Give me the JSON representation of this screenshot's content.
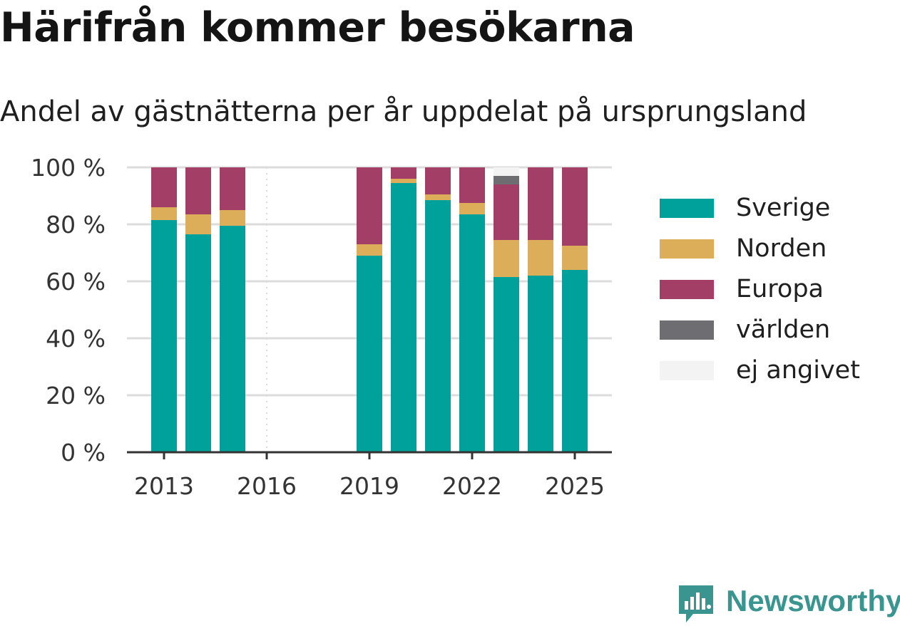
{
  "title": "Härifrån kommer besökarna",
  "subtitle": "Andel av gästnätterna per år uppdelat på ursprungsland",
  "brand": {
    "name": "Newsworthy",
    "icon": "newsworthy-logo-icon"
  },
  "colors": {
    "Sverige": "#00a19a",
    "Norden": "#dcae5a",
    "Europa": "#a33f67",
    "världen": "#6d6d72",
    "ej angivet": "#f3f3f3",
    "grid": "#dcdcdc",
    "axis": "#333333"
  },
  "legend": [
    "Sverige",
    "Norden",
    "Europa",
    "världen",
    "ej angivet"
  ],
  "chart_data": {
    "type": "bar",
    "stacked": true,
    "title": "Härifrån kommer besökarna",
    "subtitle": "Andel av gästnätterna per år uppdelat på ursprungsland",
    "categories": [
      2013,
      2014,
      2015,
      2016,
      2017,
      2018,
      2019,
      2020,
      2021,
      2022,
      2023,
      2024,
      2025
    ],
    "x_tick_labels": [
      "2013",
      "2016",
      "2019",
      "2022",
      "2025"
    ],
    "y_tick_labels": [
      "0 %",
      "20 %",
      "40 %",
      "60 %",
      "80 %",
      "100 %"
    ],
    "ylim": [
      0,
      100
    ],
    "grid": true,
    "legend_position": "right",
    "series": [
      {
        "name": "Sverige",
        "values": [
          81.5,
          76.5,
          79.5,
          null,
          null,
          null,
          69,
          94.5,
          88.5,
          83.5,
          61.5,
          62,
          64
        ]
      },
      {
        "name": "Norden",
        "values": [
          4.5,
          7,
          5.5,
          null,
          null,
          null,
          4,
          1.5,
          2,
          4,
          13,
          12.5,
          8.5
        ]
      },
      {
        "name": "Europa",
        "values": [
          14,
          16.5,
          15,
          null,
          null,
          null,
          27,
          4,
          9.5,
          12.5,
          19.5,
          25.5,
          27.5
        ]
      },
      {
        "name": "världen",
        "values": [
          0,
          0,
          0,
          null,
          null,
          null,
          0,
          0,
          0,
          0,
          3,
          0,
          0
        ]
      },
      {
        "name": "ej angivet",
        "values": [
          0,
          0,
          0,
          null,
          null,
          null,
          0,
          0,
          0,
          0,
          3,
          0,
          0
        ]
      }
    ]
  }
}
